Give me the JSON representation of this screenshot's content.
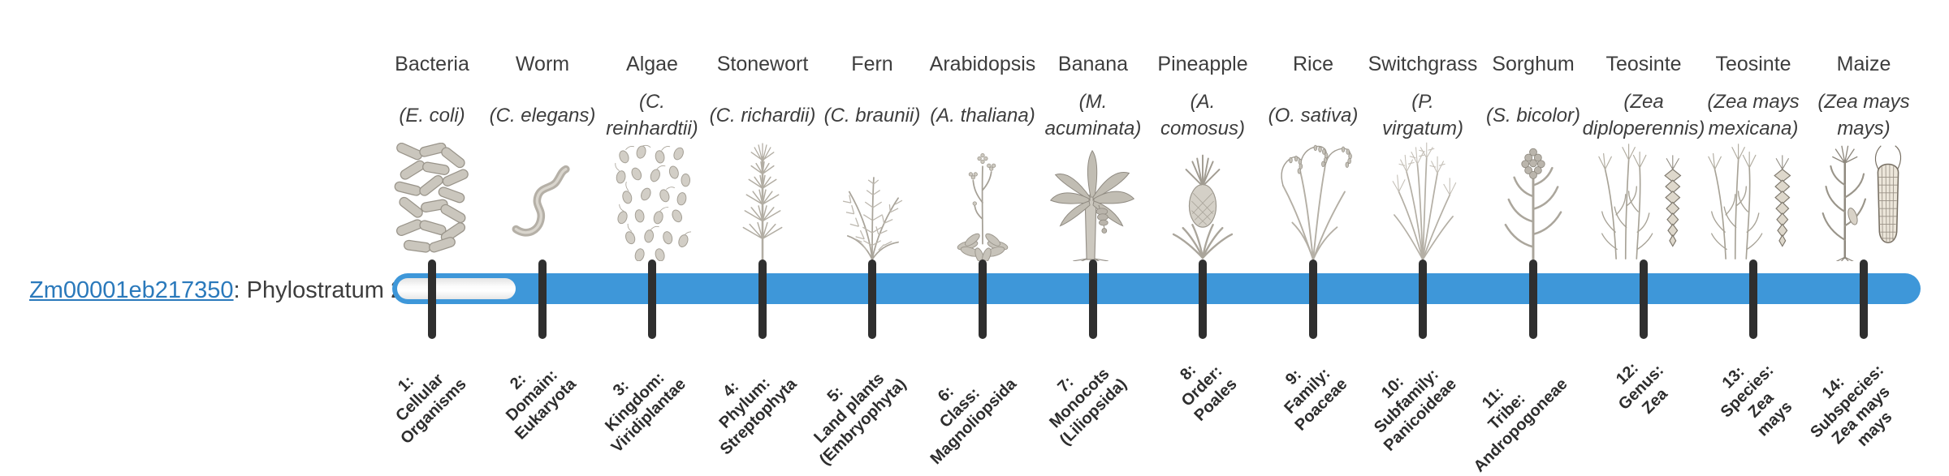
{
  "gene": {
    "id": "Zm00001eb217350",
    "separator": ": ",
    "phylostratum_label": "Phylostratum 2"
  },
  "timeline": {
    "type": "phylostrata-bar",
    "tick_count": 14,
    "filled_from_stratum": 2,
    "unfilled_strata": [
      1
    ]
  },
  "colors": {
    "bar_fill": "#3e97d9",
    "bar_empty_track": "#f6f6f6",
    "tick": "#2f2f2f",
    "link": "#2a79bb",
    "heading_text": "#3d3d3d",
    "stratum_text": "#2d2d2d"
  },
  "columns": [
    {
      "name": "Bacteria",
      "sci": "(E. coli)",
      "illustration": "bacteria",
      "stratum": "1:\nCellular\nOrganisms"
    },
    {
      "name": "Worm",
      "sci": "(C. elegans)",
      "illustration": "worm",
      "stratum": "2:\nDomain:\nEukaryota"
    },
    {
      "name": "Algae",
      "sci": "(C.\nreinhardtii)",
      "illustration": "algae",
      "stratum": "3:\nKingdom:\nViridiplantae"
    },
    {
      "name": "Stonewort",
      "sci": "(C. richardii)",
      "illustration": "stonewort",
      "stratum": "4:\nPhylum:\nStreptophyta"
    },
    {
      "name": "Fern",
      "sci": "(C. braunii)",
      "illustration": "fern",
      "stratum": "5:\nLand plants\n(Embryophyta)"
    },
    {
      "name": "Arabidopsis",
      "sci": "(A. thaliana)",
      "illustration": "arabidopsis",
      "stratum": "6:\nClass:\nMagnoliopsida"
    },
    {
      "name": "Banana",
      "sci": "(M.\nacuminata)",
      "illustration": "banana",
      "stratum": "7:\nMonocots\n(Liliopsida)"
    },
    {
      "name": "Pineapple",
      "sci": "(A.\ncomosus)",
      "illustration": "pineapple",
      "stratum": "8:\nOrder:\nPoales"
    },
    {
      "name": "Rice",
      "sci": "(O. sativa)",
      "illustration": "rice",
      "stratum": "9:\nFamily:\nPoaceae"
    },
    {
      "name": "Switchgrass",
      "sci": "(P.\nvirgatum)",
      "illustration": "switchgrass",
      "stratum": "10:\nSubfamily:\nPanicoideae"
    },
    {
      "name": "Sorghum",
      "sci": "(S. bicolor)",
      "illustration": "sorghum",
      "stratum": "11:\nTribe:\nAndropogoneae"
    },
    {
      "name": "Teosinte",
      "sci": "(Zea\ndiploperennis)",
      "illustration": "teosinte",
      "stratum": "12:\nGenus:\nZea"
    },
    {
      "name": "Teosinte",
      "sci": "(Zea mays\nmexicana)",
      "illustration": "teosinte",
      "stratum": "13:\nSpecies:\nZea\nmays"
    },
    {
      "name": "Maize",
      "sci": "(Zea mays\nmays)",
      "illustration": "maize",
      "stratum": "14:\nSubspecies:\nZea mays\nmays"
    }
  ]
}
